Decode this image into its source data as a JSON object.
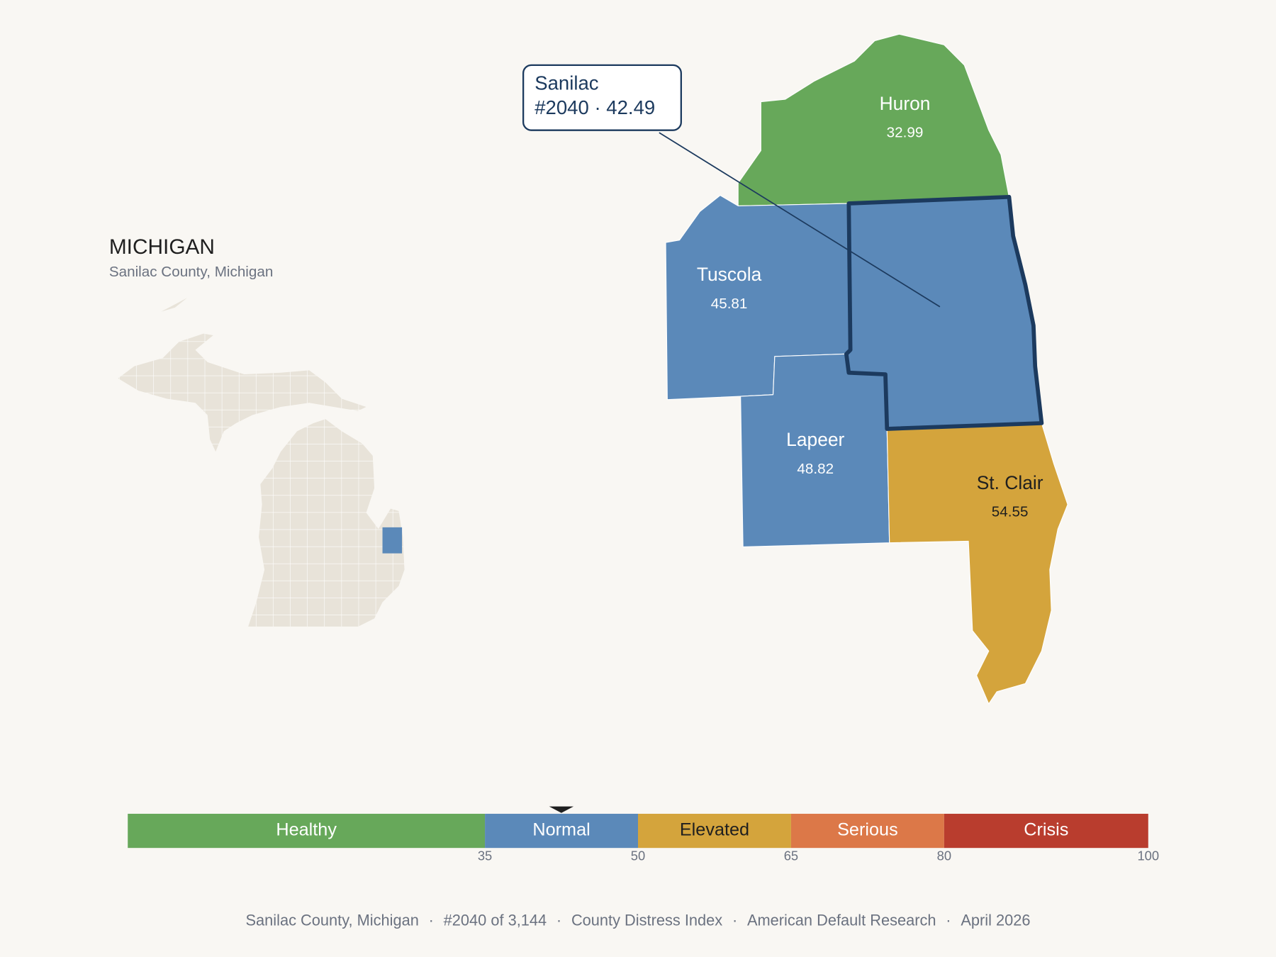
{
  "title": "MICHIGAN",
  "subtitle": "Sanilac County, Michigan",
  "counties": [
    {
      "name": "Huron",
      "score": 32.99
    },
    {
      "name": "Tuscola",
      "score": 45.81
    },
    {
      "name": "Lapeer",
      "score": 48.82
    },
    {
      "name": "St. Clair",
      "score": 54.55
    },
    {
      "name": "Sanilac",
      "score": 42.49,
      "selected": true
    }
  ],
  "callout": {
    "detail": "#2040 · 42.49"
  },
  "legend": {
    "lim": [
      0,
      100
    ],
    "ticks": [
      35,
      50,
      65,
      80,
      100
    ],
    "segments": [
      {
        "label": "Healthy",
        "color": "#67a85a",
        "text_color": "#ffffff"
      },
      {
        "label": "Normal",
        "color": "#5b89b9",
        "text_color": "#ffffff"
      },
      {
        "label": "Elevated",
        "color": "#d4a43c",
        "text_color": "#1f1f1f"
      },
      {
        "label": "Serious",
        "color": "#dc7848",
        "text_color": "#ffffff"
      },
      {
        "label": "Crisis",
        "color": "#b93d2e",
        "text_color": "#ffffff"
      }
    ]
  },
  "footer": {
    "items": [
      "Sanilac County, Michigan",
      "#2040 of 3,144",
      "County Distress Index",
      "American Default Research",
      "April 2026"
    ],
    "separator": "·"
  }
}
